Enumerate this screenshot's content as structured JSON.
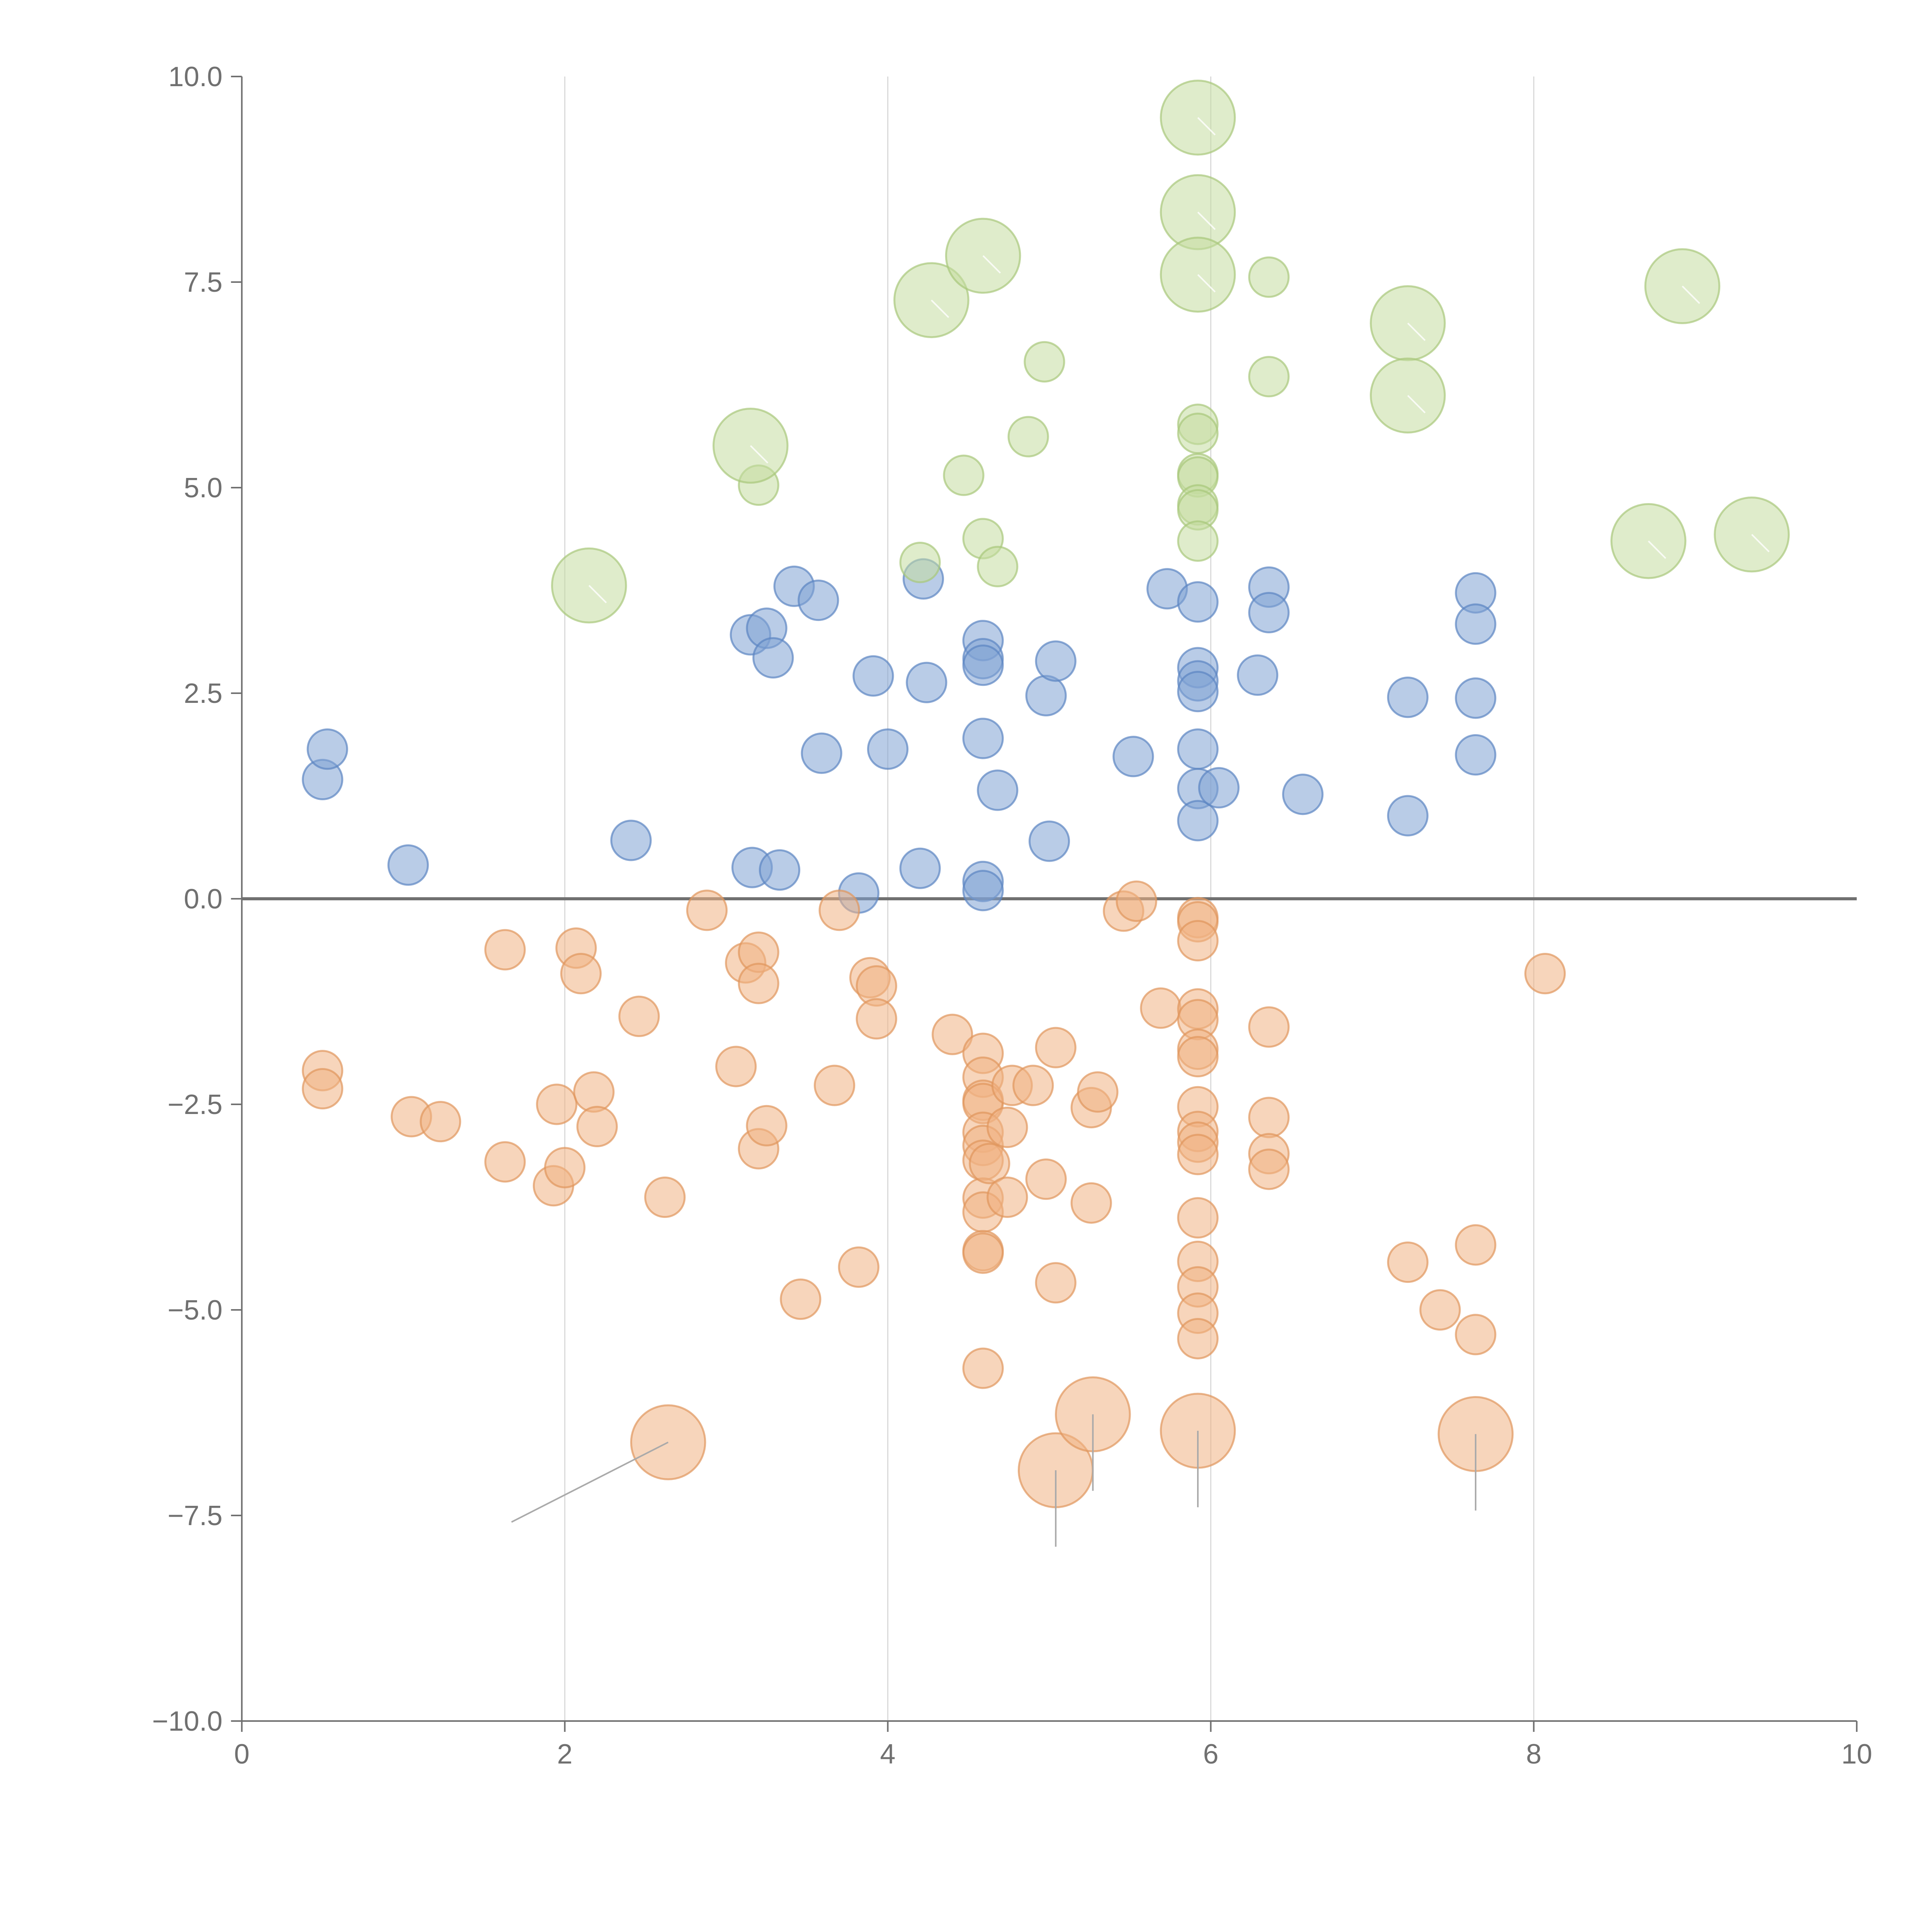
{
  "chart_data": {
    "type": "scatter",
    "title": "",
    "xlabel": "",
    "ylabel": "",
    "xlim": [
      0,
      10
    ],
    "ylim": [
      -10,
      10
    ],
    "x_ticks": [
      "0",
      "2",
      "4",
      "6",
      "8",
      "10"
    ],
    "y_ticks": [
      "10.0",
      "7.5",
      "5.0",
      "2.5",
      "0.0",
      "−2.5",
      "−5.0",
      "−7.5",
      "−10.0"
    ],
    "grid": "vertical",
    "zero_line": true,
    "legend": "none",
    "colors": {
      "blue": "#7fa2d4",
      "blue_stroke": "#5b85c2",
      "orange": "#f0b384",
      "orange_stroke": "#e0965c",
      "green": "#c5dca0",
      "green_stroke": "#a8c87a",
      "leader_light": "#ffffff",
      "leader_dark": "#aaaaaa"
    },
    "series": [
      {
        "color_key": "blue",
        "size": "small",
        "points": [
          [
            0.5,
            1.45
          ],
          [
            0.53,
            1.82
          ],
          [
            1.03,
            0.41
          ],
          [
            2.41,
            0.71
          ],
          [
            3.16,
            0.38
          ],
          [
            3.33,
            0.35
          ],
          [
            3.15,
            3.21
          ],
          [
            3.25,
            3.29
          ],
          [
            3.29,
            2.93
          ],
          [
            3.42,
            3.8
          ],
          [
            3.57,
            3.63
          ],
          [
            3.59,
            1.77
          ],
          [
            3.82,
            0.07
          ],
          [
            3.91,
            2.71
          ],
          [
            4.0,
            1.82
          ],
          [
            4.2,
            0.37
          ],
          [
            4.22,
            3.89
          ],
          [
            4.24,
            2.63
          ],
          [
            4.59,
            3.14
          ],
          [
            4.59,
            2.92
          ],
          [
            4.59,
            2.84
          ],
          [
            4.59,
            1.95
          ],
          [
            4.59,
            0.21
          ],
          [
            4.59,
            0.1
          ],
          [
            4.68,
            1.32
          ],
          [
            4.98,
            2.47
          ],
          [
            5.0,
            0.7
          ],
          [
            5.04,
            2.89
          ],
          [
            5.52,
            1.73
          ],
          [
            5.73,
            3.77
          ],
          [
            5.92,
            3.61
          ],
          [
            5.92,
            2.81
          ],
          [
            5.92,
            2.65
          ],
          [
            5.92,
            2.52
          ],
          [
            5.92,
            1.82
          ],
          [
            5.92,
            1.34
          ],
          [
            5.92,
            0.95
          ],
          [
            6.05,
            1.35
          ],
          [
            6.29,
            2.72
          ],
          [
            6.36,
            3.79
          ],
          [
            6.36,
            3.48
          ],
          [
            6.57,
            1.27
          ],
          [
            7.22,
            2.45
          ],
          [
            7.22,
            1.01
          ],
          [
            7.64,
            3.72
          ],
          [
            7.64,
            3.34
          ],
          [
            7.64,
            2.44
          ],
          [
            7.64,
            1.75
          ]
        ]
      },
      {
        "color_key": "orange",
        "size": "small",
        "points": [
          [
            0.5,
            -2.09
          ],
          [
            0.5,
            -2.31
          ],
          [
            1.05,
            -2.65
          ],
          [
            1.23,
            -2.71
          ],
          [
            1.63,
            -0.62
          ],
          [
            1.63,
            -3.2
          ],
          [
            1.93,
            -3.49
          ],
          [
            1.95,
            -2.5
          ],
          [
            2.0,
            -3.27
          ],
          [
            2.07,
            -0.6
          ],
          [
            2.1,
            -0.91
          ],
          [
            2.18,
            -2.35
          ],
          [
            2.2,
            -2.77
          ],
          [
            2.46,
            -1.43
          ],
          [
            2.62,
            -3.63
          ],
          [
            2.88,
            -0.14
          ],
          [
            3.06,
            -2.04
          ],
          [
            3.12,
            -0.78
          ],
          [
            3.2,
            -0.65
          ],
          [
            3.2,
            -1.03
          ],
          [
            3.2,
            -3.04
          ],
          [
            3.25,
            -2.76
          ],
          [
            3.46,
            -4.87
          ],
          [
            3.67,
            -2.27
          ],
          [
            3.7,
            -0.14
          ],
          [
            3.82,
            -4.48
          ],
          [
            3.89,
            -0.96
          ],
          [
            3.93,
            -1.06
          ],
          [
            3.93,
            -1.46
          ],
          [
            4.4,
            -1.65
          ],
          [
            4.59,
            -1.88
          ],
          [
            4.59,
            -2.17
          ],
          [
            4.59,
            -2.45
          ],
          [
            4.59,
            -2.49
          ],
          [
            4.59,
            -2.84
          ],
          [
            4.59,
            -3.0
          ],
          [
            4.59,
            -3.18
          ],
          [
            4.59,
            -3.64
          ],
          [
            4.59,
            -3.81
          ],
          [
            4.59,
            -4.28
          ],
          [
            4.59,
            -4.31
          ],
          [
            4.59,
            -5.71
          ],
          [
            4.63,
            -3.22
          ],
          [
            4.74,
            -2.78
          ],
          [
            4.74,
            -3.63
          ],
          [
            4.77,
            -2.27
          ],
          [
            4.9,
            -2.27
          ],
          [
            4.98,
            -3.41
          ],
          [
            5.04,
            -1.81
          ],
          [
            5.04,
            -4.67
          ],
          [
            5.26,
            -2.54
          ],
          [
            5.26,
            -3.7
          ],
          [
            5.3,
            -2.35
          ],
          [
            5.46,
            -0.15
          ],
          [
            5.54,
            -0.03
          ],
          [
            5.69,
            -1.33
          ],
          [
            5.92,
            -0.23
          ],
          [
            5.92,
            -0.28
          ],
          [
            5.92,
            -0.51
          ],
          [
            5.92,
            -1.34
          ],
          [
            5.92,
            -1.47
          ],
          [
            5.92,
            -1.83
          ],
          [
            5.92,
            -1.92
          ],
          [
            5.92,
            -2.53
          ],
          [
            5.92,
            -2.83
          ],
          [
            5.92,
            -2.96
          ],
          [
            5.92,
            -3.11
          ],
          [
            5.92,
            -3.88
          ],
          [
            5.92,
            -4.41
          ],
          [
            5.92,
            -4.72
          ],
          [
            5.92,
            -5.04
          ],
          [
            5.92,
            -5.35
          ],
          [
            6.36,
            -1.56
          ],
          [
            6.36,
            -2.66
          ],
          [
            6.36,
            -3.1
          ],
          [
            6.36,
            -3.29
          ],
          [
            7.22,
            -4.42
          ],
          [
            7.42,
            -5.0
          ],
          [
            7.64,
            -4.21
          ],
          [
            7.64,
            -5.3
          ],
          [
            8.07,
            -0.91
          ]
        ]
      },
      {
        "color_key": "orange",
        "size": "large",
        "points": [
          [
            2.64,
            -6.61
          ],
          [
            5.04,
            -6.95
          ],
          [
            5.27,
            -6.27
          ],
          [
            5.92,
            -6.47
          ],
          [
            7.64,
            -6.51
          ]
        ]
      },
      {
        "color_key": "green",
        "size": "small",
        "points": [
          [
            3.2,
            5.03
          ],
          [
            4.2,
            4.09
          ],
          [
            4.47,
            5.15
          ],
          [
            4.59,
            4.38
          ],
          [
            4.68,
            4.04
          ],
          [
            4.87,
            5.62
          ],
          [
            4.97,
            6.53
          ],
          [
            5.92,
            5.77
          ],
          [
            5.92,
            5.66
          ],
          [
            5.92,
            5.17
          ],
          [
            5.92,
            5.13
          ],
          [
            5.92,
            4.79
          ],
          [
            5.92,
            4.73
          ],
          [
            5.92,
            4.35
          ],
          [
            6.36,
            7.56
          ],
          [
            6.36,
            6.35
          ]
        ]
      },
      {
        "color_key": "green",
        "size": "large",
        "points": [
          [
            2.15,
            3.81
          ],
          [
            3.15,
            5.51
          ],
          [
            4.27,
            7.28
          ],
          [
            4.59,
            7.82
          ],
          [
            5.92,
            9.5
          ],
          [
            5.92,
            8.35
          ],
          [
            5.92,
            7.59
          ],
          [
            7.22,
            7.0
          ],
          [
            7.22,
            6.12
          ],
          [
            8.71,
            4.35
          ],
          [
            8.92,
            7.45
          ],
          [
            9.35,
            4.43
          ]
        ]
      }
    ]
  }
}
